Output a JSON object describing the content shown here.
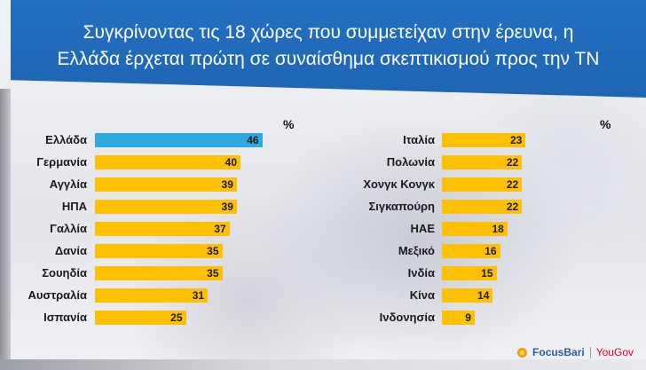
{
  "title": "Συγκρίνοντας τις 18 χώρες που συμμετείχαν στην έρευνα, η\nΕλλάδα έρχεται πρώτη σε συναίσθημα σκεπτικισμού προς την ΤΝ",
  "logos": {
    "focusbari": "FocusBari",
    "yougov": "YouGov"
  },
  "colors": {
    "header": "#2270c2",
    "bar": "#ffc000",
    "highlight": "#2eaae1"
  },
  "chart_data": [
    {
      "type": "bar",
      "orientation": "horizontal",
      "unit_label": "%",
      "categories": [
        "Ελλάδα",
        "Γερμανία",
        "Αγγλία",
        "ΗΠΑ",
        "Γαλλία",
        "Δανία",
        "Σουηδία",
        "Αυστραλία",
        "Ισπανία"
      ],
      "values": [
        46,
        40,
        39,
        39,
        37,
        35,
        35,
        31,
        25
      ],
      "highlight": "Ελλάδα",
      "xlim": [
        0,
        50
      ]
    },
    {
      "type": "bar",
      "orientation": "horizontal",
      "unit_label": "%",
      "categories": [
        "Ιταλία",
        "Πολωνία",
        "Χονγκ Κονγκ",
        "Σιγκαπούρη",
        "ΗΑΕ",
        "Μεξικό",
        "Ινδία",
        "Κίνα",
        "Ινδονησία"
      ],
      "values": [
        23,
        22,
        22,
        22,
        18,
        16,
        15,
        14,
        9
      ],
      "xlim": [
        0,
        50
      ]
    }
  ]
}
